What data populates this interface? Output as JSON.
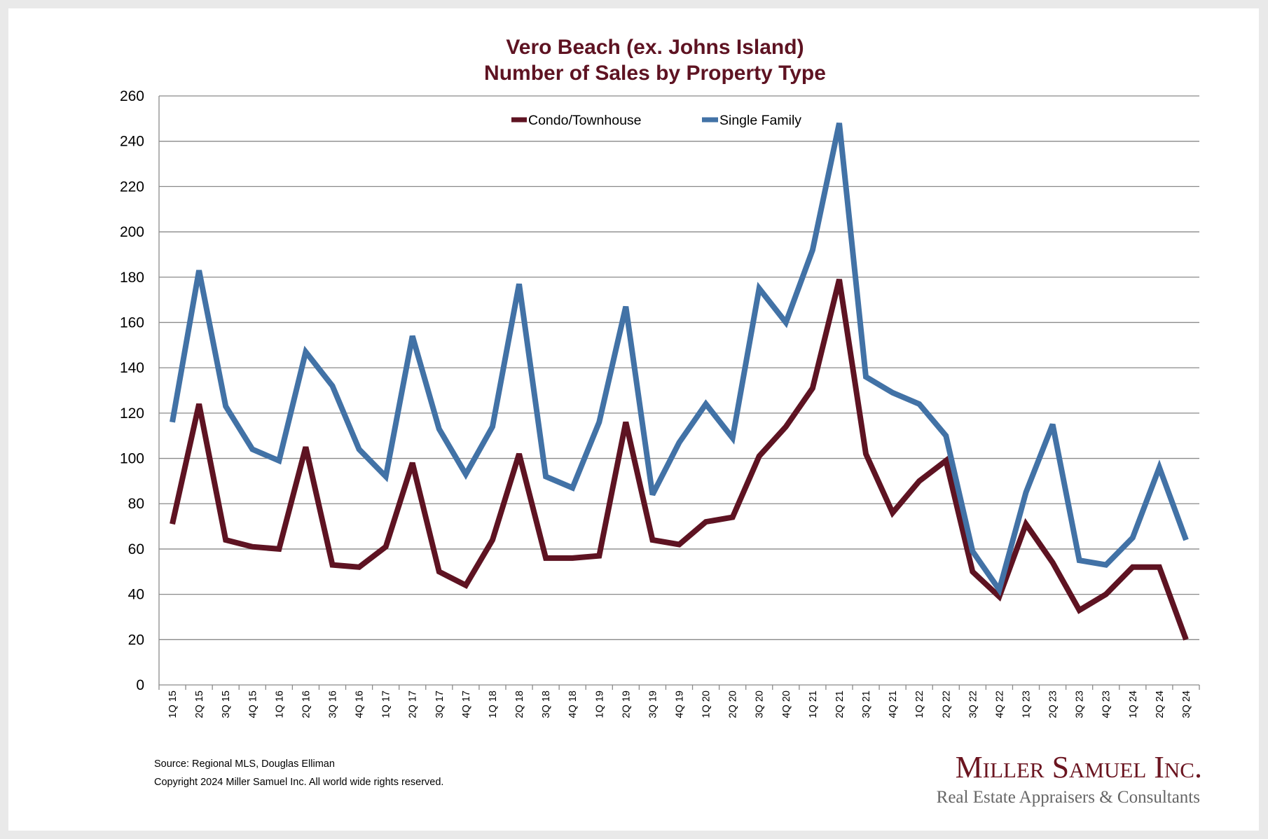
{
  "chart_data": {
    "type": "line",
    "title": "Vero Beach (ex. Johns Island)",
    "subtitle": "Number of Sales by Property Type",
    "xlabel": "",
    "ylabel": "",
    "ylim": [
      0,
      260
    ],
    "yticks": [
      0,
      20,
      40,
      60,
      80,
      100,
      120,
      140,
      160,
      180,
      200,
      220,
      240,
      260
    ],
    "grid": true,
    "legend_position": "top-center",
    "categories": [
      "1Q 15",
      "2Q 15",
      "3Q 15",
      "4Q 15",
      "1Q 16",
      "2Q 16",
      "3Q 16",
      "4Q 16",
      "1Q 17",
      "2Q 17",
      "3Q 17",
      "4Q 17",
      "1Q 18",
      "2Q 18",
      "3Q 18",
      "4Q 18",
      "1Q 19",
      "2Q 19",
      "3Q 19",
      "4Q 19",
      "1Q 20",
      "2Q 20",
      "3Q 20",
      "4Q 20",
      "1Q 21",
      "2Q 21",
      "3Q 21",
      "4Q 21",
      "1Q 22",
      "2Q 22",
      "3Q 22",
      "4Q 22",
      "1Q 23",
      "2Q 23",
      "3Q 23",
      "4Q 23",
      "1Q 24",
      "2Q 24",
      "3Q 24"
    ],
    "series": [
      {
        "name": "Condo/Townhouse",
        "color": "#5e1322",
        "values": [
          71,
          124,
          64,
          61,
          60,
          105,
          53,
          52,
          61,
          98,
          50,
          44,
          64,
          102,
          56,
          56,
          57,
          116,
          64,
          62,
          72,
          74,
          101,
          114,
          131,
          179,
          102,
          76,
          90,
          99,
          50,
          39,
          71,
          54,
          33,
          40,
          52,
          52,
          20
        ]
      },
      {
        "name": "Single Family",
        "color": "#4272a6",
        "values": [
          116,
          183,
          123,
          104,
          99,
          147,
          132,
          104,
          92,
          154,
          113,
          93,
          114,
          177,
          92,
          87,
          116,
          167,
          84,
          107,
          124,
          109,
          175,
          160,
          192,
          248,
          136,
          129,
          124,
          110,
          59,
          42,
          85,
          115,
          55,
          53,
          65,
          96,
          64
        ]
      }
    ]
  },
  "footer": {
    "source": "Source: Regional MLS, Douglas Elliman",
    "copyright": "Copyright 2024 Miller Samuel Inc.  All world wide rights reserved."
  },
  "logo": {
    "name": "Miller Samuel Inc.",
    "tagline": "Real Estate Appraisers & Consultants"
  }
}
